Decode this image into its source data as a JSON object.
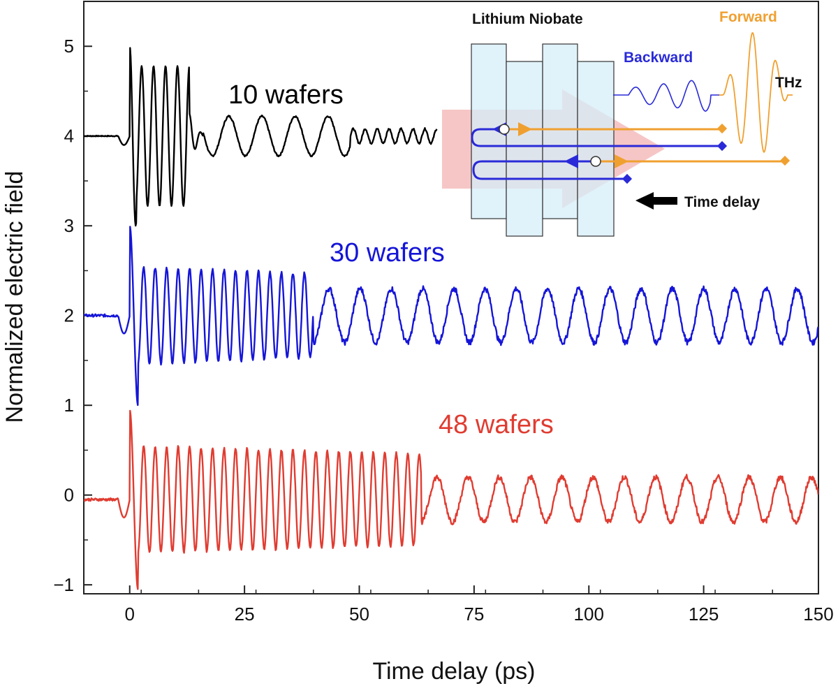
{
  "chart_data": {
    "type": "line",
    "xlabel": "Time delay (ps)",
    "ylabel": "Normalized electric field",
    "xlim": [
      -10,
      150
    ],
    "ylim": [
      -1.1,
      5.5
    ],
    "x_ticks": [
      "0",
      "25",
      "50",
      "75",
      "100",
      "125",
      "150"
    ],
    "x_tick_values": [
      0,
      25,
      50,
      75,
      100,
      125,
      150
    ],
    "y_ticks": [
      "−1",
      "0",
      "1",
      "2",
      "3",
      "4",
      "5"
    ],
    "y_tick_values": [
      -1,
      0,
      1,
      2,
      3,
      4,
      5
    ],
    "grid": false,
    "series": [
      {
        "name": "10 wafers",
        "color": "#000000",
        "offset": 4,
        "x": [
          -10,
          -3,
          -1,
          0,
          1.5,
          3,
          4,
          5.5,
          7,
          8.5,
          10,
          11.5,
          13,
          14,
          15,
          16,
          18,
          20,
          22.5,
          25,
          27.5,
          30,
          32.5,
          35,
          37.5,
          40,
          43,
          46,
          49,
          51,
          53,
          55,
          57,
          59,
          61,
          63,
          67
        ],
        "y": [
          4.0,
          4.0,
          3.75,
          5.0,
          3.0,
          4.65,
          3.3,
          4.85,
          3.3,
          4.8,
          3.3,
          4.78,
          3.55,
          4.1,
          3.9,
          4.05,
          4.2,
          3.7,
          4.2,
          3.7,
          4.2,
          3.7,
          4.25,
          3.68,
          4.25,
          3.7,
          4.2,
          3.78,
          4.12,
          3.92,
          4.08,
          3.93,
          4.1,
          3.93,
          4.05,
          3.95,
          4.02
        ]
      },
      {
        "name": "30 wafers",
        "color": "#1515d8",
        "offset": 2,
        "period_fast_ps": 2.5,
        "period_slow_ps": 7.0,
        "x": [
          -10,
          -3,
          -1,
          0,
          1.8,
          3,
          40,
          45,
          150
        ],
        "y": [
          2.0,
          2.0,
          1.8,
          3.0,
          1.0,
          2.55,
          2.55,
          2.35,
          2.2
        ]
      },
      {
        "name": "48 wafers",
        "color": "#e03c31",
        "offset": 0,
        "period_fast_ps": 2.5,
        "period_slow_ps": 7.0,
        "x": [
          -10,
          -3,
          -1,
          0,
          1.8,
          3,
          63.5,
          65,
          150
        ],
        "y": [
          -0.1,
          -0.1,
          -0.4,
          0.9,
          -1.0,
          0.5,
          0.45,
          0.3,
          0.4
        ]
      }
    ],
    "annotations": [
      "10 wafers",
      "30 wafers",
      "48 wafers"
    ]
  },
  "inset": {
    "title": "Lithium Niobate",
    "forward_label": "Forward",
    "backward_label": "Backward",
    "thz_label": "THz",
    "delay_label": "Time delay",
    "forward_color": "#f0a030",
    "backward_color": "#2a2ad8",
    "wafer_fill": "#d6eef8",
    "arrow_fill": "#f4b8b8"
  }
}
